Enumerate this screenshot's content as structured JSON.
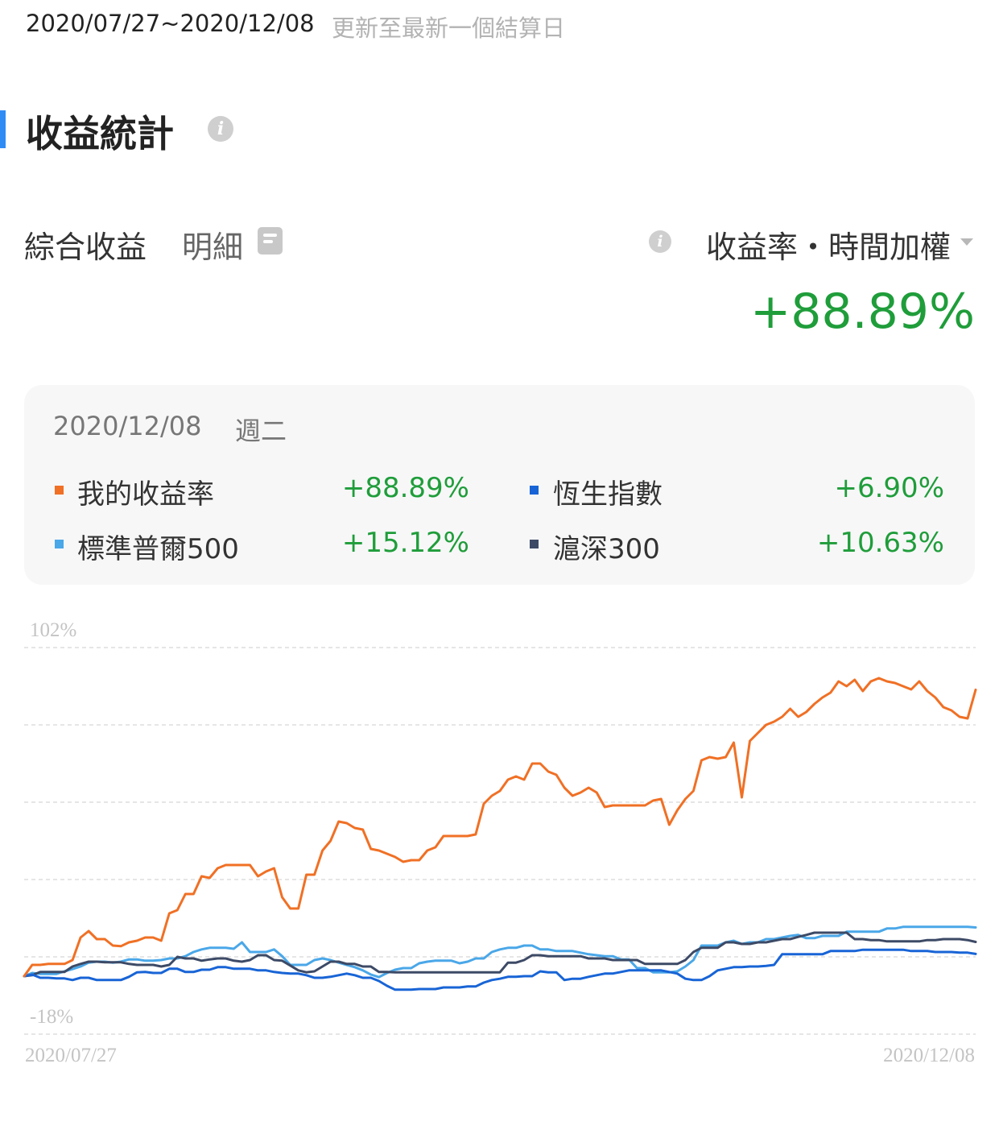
{
  "header": {
    "date_range": "2020/07/27~2020/12/08",
    "update_note": "更新至最新一個結算日"
  },
  "section": {
    "title": "收益統計",
    "info_icon": "info-icon"
  },
  "summary": {
    "label": "綜合收益",
    "detail_label": "明細",
    "detail_icon": "document-icon",
    "metric_label": "收益率・時間加權",
    "metric_dropdown_icon": "caret-down-icon",
    "value": "+88.89%"
  },
  "tooltip": {
    "date": "2020/12/08",
    "weekday": "週二",
    "items": [
      {
        "name": "我的收益率",
        "value": "+88.89%",
        "color": "#f07025"
      },
      {
        "name": "恆生指數",
        "value": "+6.90%",
        "color": "#1864d6"
      },
      {
        "name": "標準普爾500",
        "value": "+15.12%",
        "color": "#4aa7e8"
      },
      {
        "name": "滬深300",
        "value": "+10.63%",
        "color": "#3d4a66"
      }
    ]
  },
  "colors": {
    "accent": "#2f8cf5",
    "positive": "#1f9d3a",
    "grid": "#dddddd"
  },
  "chart_data": {
    "type": "line",
    "y_top_label": "102%",
    "y_bottom_label": "-18%",
    "x_start_label": "2020/07/27",
    "x_end_label": "2020/12/08",
    "ylim": [
      -18,
      102
    ],
    "grid": true,
    "legend": "none",
    "series": [
      {
        "name": "我的收益率",
        "color": "#f07025",
        "values": [
          0,
          3.5,
          3.5,
          3.8,
          3.8,
          3.8,
          5,
          12,
          14,
          11.5,
          11.5,
          9.5,
          9.3,
          10.5,
          11,
          12,
          12,
          11,
          19.5,
          20.5,
          25.5,
          25.5,
          31,
          30.5,
          33.5,
          34.5,
          34.5,
          34.5,
          34.5,
          31,
          32.5,
          33.5,
          24.5,
          21,
          21,
          31.5,
          31.5,
          39,
          42,
          48,
          47.5,
          46,
          45.5,
          39.5,
          39,
          38,
          37,
          35.5,
          36,
          36,
          39,
          40,
          43.5,
          43.5,
          43.5,
          43.5,
          44,
          53.5,
          56,
          57.5,
          61,
          62,
          61,
          66,
          66,
          63.5,
          62.5,
          58.5,
          56,
          57,
          58.5,
          57,
          52.5,
          53,
          53,
          53,
          53,
          53,
          54.5,
          55,
          47,
          51.5,
          55,
          57.5,
          67,
          68,
          67.5,
          68,
          72.5,
          55.5,
          73,
          75.5,
          78,
          79,
          80.5,
          83,
          80.5,
          82,
          84.5,
          86.5,
          88,
          91.5,
          90,
          92,
          88.5,
          91.5,
          92.5,
          91.5,
          91,
          90,
          89,
          91.5,
          88.5,
          86.5,
          83.5,
          82.5,
          80.5,
          80,
          88.89
        ]
      },
      {
        "name": "恆生指數",
        "color": "#1864d6",
        "values": [
          0,
          0.5,
          -0.5,
          -0.5,
          -0.7,
          -0.7,
          -1.2,
          -0.5,
          -0.5,
          -1.2,
          -1.2,
          -1.2,
          -1.2,
          -0.2,
          1.2,
          1.3,
          1,
          1,
          2.3,
          2.3,
          1.3,
          1.3,
          2,
          2,
          2.8,
          2.8,
          2.3,
          2.3,
          2.3,
          1.8,
          1.8,
          1.3,
          1,
          0.8,
          0.8,
          0.3,
          -0.5,
          -0.5,
          -0.2,
          0.3,
          0.8,
          0.3,
          -0.5,
          -0.5,
          -1.5,
          -3,
          -4.2,
          -4.2,
          -4.2,
          -4,
          -4,
          -4,
          -3.5,
          -3.5,
          -3.5,
          -3.2,
          -3.2,
          -2,
          -1.2,
          -0.8,
          -0.2,
          -0.2,
          0,
          0,
          1.5,
          1.2,
          1.2,
          -1.2,
          -0.8,
          -0.8,
          -0.2,
          0.3,
          0.8,
          0.8,
          1.3,
          1.8,
          1.8,
          1.8,
          1.8,
          1.8,
          1.3,
          0.8,
          -0.8,
          -1.2,
          -1.2,
          0,
          1.8,
          2.3,
          2.8,
          2.8,
          3,
          3,
          3.2,
          3.5,
          6.8,
          6.8,
          6.8,
          6.8,
          6.8,
          6.8,
          7.8,
          7.8,
          7.8,
          7.8,
          8.2,
          8.2,
          8.2,
          8.2,
          8.2,
          8.2,
          7.8,
          7.8,
          7.8,
          7.5,
          7.5,
          7.5,
          7.3,
          7.3,
          6.9
        ]
      },
      {
        "name": "標準普爾500",
        "color": "#4aa7e8",
        "values": [
          0,
          1,
          0.7,
          0.7,
          0.7,
          1.5,
          2.2,
          3,
          4.2,
          4.5,
          4.5,
          4.2,
          4.5,
          5.2,
          5.2,
          4.8,
          4.8,
          5,
          5.5,
          5.5,
          6.2,
          7.5,
          8.3,
          8.8,
          8.8,
          8.8,
          8.5,
          10.5,
          7.5,
          7.5,
          7.5,
          8.3,
          6.2,
          3.5,
          3.5,
          3.5,
          5,
          5.5,
          5,
          4.2,
          3.5,
          2.8,
          1.8,
          0.5,
          -0.3,
          1,
          2,
          2.5,
          2.5,
          4,
          4.5,
          4.8,
          4.8,
          4.8,
          4,
          4.5,
          5.5,
          5.5,
          7.5,
          8.3,
          8.8,
          8.8,
          9.5,
          9.5,
          8.3,
          8.3,
          7.8,
          7.8,
          7.8,
          7.3,
          6.8,
          6.5,
          6.2,
          6.2,
          5.2,
          5.2,
          2.5,
          2.5,
          1.2,
          1.2,
          1.2,
          1.5,
          3,
          5,
          9.5,
          9.5,
          9.5,
          10.5,
          11,
          10,
          10.5,
          10.5,
          11.5,
          11.5,
          12,
          12.5,
          12.8,
          11.8,
          11.8,
          12.5,
          12.5,
          12.5,
          13.8,
          13.8,
          13.8,
          13.8,
          13.8,
          14.8,
          14.8,
          15.3,
          15.3,
          15.3,
          15.3,
          15.3,
          15.3,
          15.3,
          15.3,
          15.3,
          15.12
        ]
      },
      {
        "name": "滬深300",
        "color": "#3d4a66",
        "values": [
          0,
          0.3,
          1.3,
          1.3,
          1.3,
          1.3,
          3,
          3.8,
          4.5,
          4.5,
          4.3,
          4.3,
          4.3,
          3.8,
          3.5,
          3.5,
          3.5,
          3,
          3.5,
          6,
          5.5,
          5.5,
          4.8,
          5.2,
          5.5,
          5.5,
          4.8,
          4.5,
          5,
          6.5,
          6.5,
          5,
          4.8,
          3.3,
          1.8,
          1.2,
          1.5,
          3,
          4.5,
          4.5,
          3.8,
          3.8,
          3,
          3,
          1.3,
          1.3,
          1.2,
          1.2,
          1.2,
          1.2,
          1.2,
          1.2,
          1.2,
          1.2,
          1.2,
          1.2,
          1.2,
          1.2,
          1.2,
          1.2,
          4.2,
          4.2,
          5,
          6.5,
          6.5,
          6.2,
          6.2,
          6.2,
          6.2,
          6.2,
          5.5,
          5.5,
          5.5,
          5,
          5,
          5,
          5,
          3.8,
          3.8,
          3.8,
          3.8,
          3.8,
          5,
          7.5,
          8.8,
          8.8,
          8.8,
          10.5,
          10.5,
          10,
          10,
          10.5,
          10.5,
          11,
          11.5,
          11.5,
          12.2,
          12.8,
          13.5,
          13.5,
          13.5,
          13.5,
          13.5,
          11.5,
          11.5,
          11.2,
          11.2,
          10.8,
          10.8,
          10.8,
          10.8,
          10.8,
          11.2,
          11.2,
          11.5,
          11.5,
          11.5,
          11.2,
          10.63
        ]
      }
    ]
  }
}
